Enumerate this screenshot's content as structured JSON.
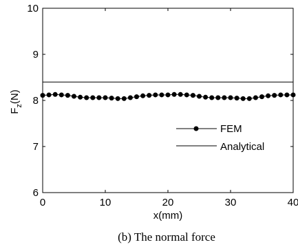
{
  "chart_data": {
    "type": "line",
    "caption": "(b) The normal force",
    "xlabel": "x(mm)",
    "ylabel": {
      "main": "F",
      "sub": "z",
      "unit": "(N)"
    },
    "xlim": [
      0,
      40
    ],
    "ylim": [
      6,
      10
    ],
    "xticks": [
      0,
      10,
      20,
      30,
      40
    ],
    "yticks": [
      6,
      7,
      8,
      9,
      10
    ],
    "grid": false,
    "legend_position": "center-right",
    "series": [
      {
        "name": "FEM",
        "style": "line-with-dots",
        "color": "#000000",
        "x": [
          0,
          1,
          2,
          3,
          4,
          5,
          6,
          7,
          8,
          9,
          10,
          11,
          12,
          13,
          14,
          15,
          16,
          17,
          18,
          19,
          20,
          21,
          22,
          23,
          24,
          25,
          26,
          27,
          28,
          29,
          30,
          31,
          32,
          33,
          34,
          35,
          36,
          37,
          38,
          39,
          40
        ],
        "y": [
          8.11,
          8.12,
          8.13,
          8.12,
          8.11,
          8.09,
          8.07,
          8.06,
          8.06,
          8.06,
          8.06,
          8.05,
          8.04,
          8.04,
          8.06,
          8.08,
          8.1,
          8.11,
          8.12,
          8.12,
          8.12,
          8.13,
          8.13,
          8.12,
          8.11,
          8.09,
          8.07,
          8.06,
          8.06,
          8.06,
          8.06,
          8.05,
          8.04,
          8.04,
          8.06,
          8.08,
          8.1,
          8.11,
          8.12,
          8.12,
          8.12
        ]
      },
      {
        "name": "Analytical",
        "style": "line",
        "color": "#000000",
        "x": [
          0,
          40
        ],
        "y": [
          8.4,
          8.4
        ]
      }
    ]
  }
}
